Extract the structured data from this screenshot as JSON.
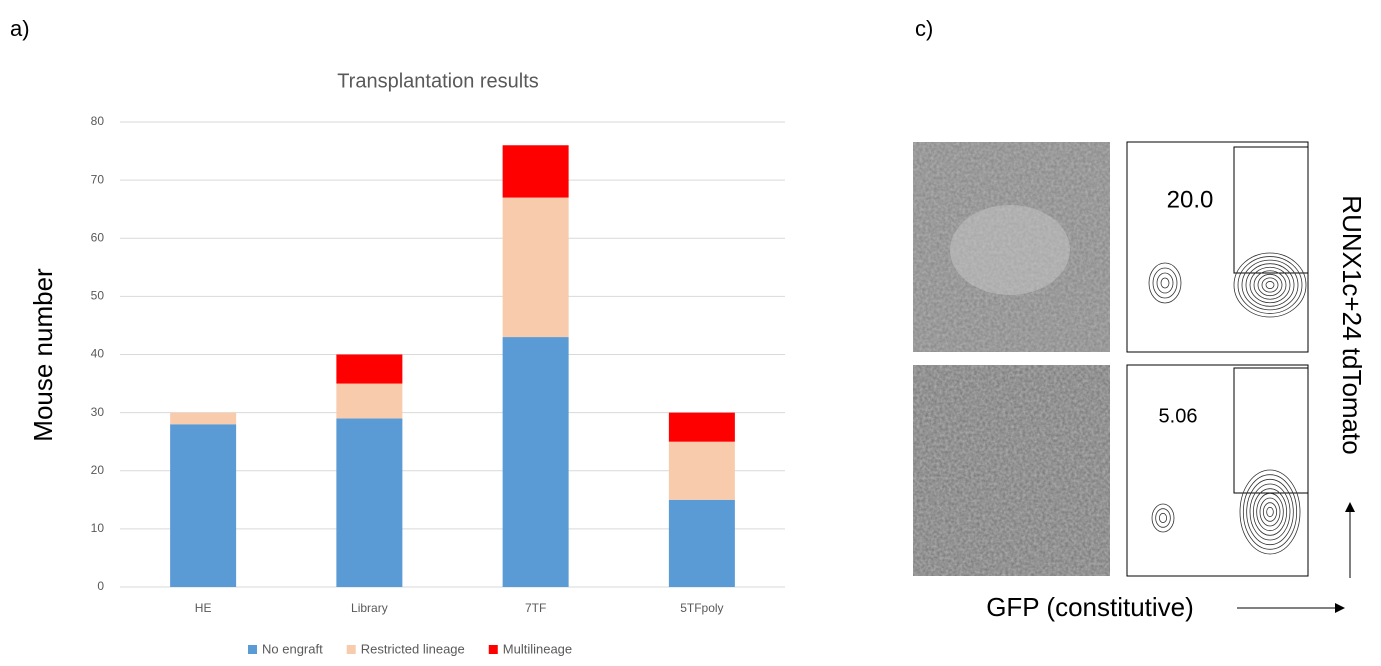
{
  "panel_labels": [
    "a)",
    "c)"
  ],
  "chart_data": {
    "type": "stacked_bar",
    "title": "Transplantation results",
    "y_label": "Mouse number",
    "categories": [
      "HE",
      "Library",
      "7TF",
      "5TFpoly"
    ],
    "series": [
      {
        "name": "No engraft",
        "color": "#5b9bd5",
        "values": [
          28,
          29,
          43,
          15
        ]
      },
      {
        "name": "Restricted lineage",
        "color": "#f8cbad",
        "values": [
          2,
          6,
          24,
          10
        ]
      },
      {
        "name": "Multilineage",
        "color": "#ff0000",
        "values": [
          0,
          5,
          9,
          5
        ]
      }
    ],
    "ylim": [
      0,
      80
    ],
    "yticks": [
      0,
      10,
      20,
      30,
      40,
      50,
      60,
      70,
      80
    ],
    "grid": true,
    "legend": "bottom"
  },
  "flow_panel": {
    "x_label": "GFP (constitutive)",
    "y_label": "RUNX1c+24 tdTomato",
    "gate_values": [
      "20.0",
      "5.06"
    ]
  }
}
